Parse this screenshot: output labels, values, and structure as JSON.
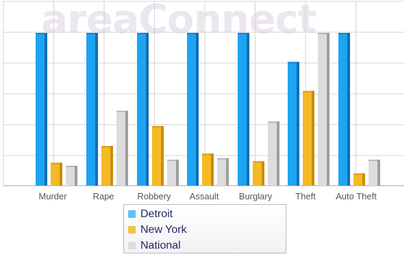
{
  "watermark": "areaConnect",
  "colors": {
    "detroit": "#1ea4f2",
    "detroit_dark": "#0f6fb8",
    "new_york": "#f5b925",
    "new_york_dark": "#c98d0a",
    "national": "#dcdcdc",
    "national_dark": "#9e9e9e",
    "grid": "#d3d3d3",
    "legend_text": "#1e2b66"
  },
  "chart_data": {
    "type": "bar",
    "categories": [
      "Murder",
      "Rape",
      "Robbery",
      "Assault",
      "Burglary",
      "Theft",
      "Auto Theft"
    ],
    "ylim": [
      0,
      100
    ],
    "grid": true,
    "legend_position": "bottom",
    "series": [
      {
        "name": "Detroit",
        "values": [
          100,
          100,
          100,
          100,
          100,
          81,
          100
        ]
      },
      {
        "name": "New York",
        "values": [
          15,
          26,
          39,
          21,
          16,
          62,
          8
        ]
      },
      {
        "name": "National",
        "values": [
          13,
          49,
          17,
          18,
          42,
          100,
          17
        ]
      }
    ]
  }
}
